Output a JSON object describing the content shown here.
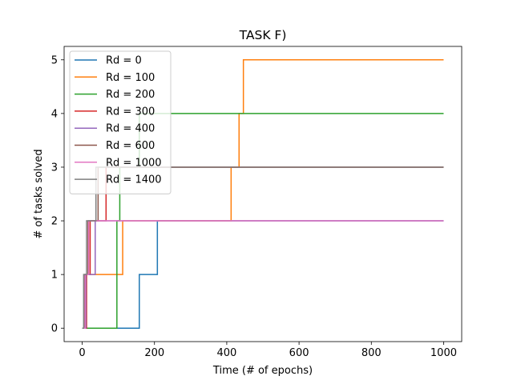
{
  "chart_data": {
    "type": "line",
    "title": "TASK F)",
    "xlabel": "Time (# of epochs)",
    "ylabel": "# of tasks solved",
    "xlim": [
      -50,
      1050
    ],
    "ylim": [
      -0.25,
      5.25
    ],
    "xticks": [
      0,
      200,
      400,
      600,
      800,
      1000
    ],
    "yticks": [
      0,
      1,
      2,
      3,
      4,
      5
    ],
    "grid": false,
    "legend": "top-left",
    "line_style": "step",
    "series": [
      {
        "name": "Rd = 0",
        "color": "#1f77b4",
        "points": [
          [
            0,
            0
          ],
          [
            158,
            0
          ],
          [
            158,
            1
          ],
          [
            208,
            1
          ],
          [
            208,
            2
          ],
          [
            1000,
            2
          ]
        ]
      },
      {
        "name": "Rd = 100",
        "color": "#ff7f0e",
        "points": [
          [
            0,
            0
          ],
          [
            10,
            0
          ],
          [
            10,
            1
          ],
          [
            112,
            1
          ],
          [
            112,
            2
          ],
          [
            412,
            2
          ],
          [
            412,
            3
          ],
          [
            434,
            3
          ],
          [
            434,
            4
          ],
          [
            446,
            4
          ],
          [
            446,
            5
          ],
          [
            1000,
            5
          ]
        ]
      },
      {
        "name": "Rd = 200",
        "color": "#2ca02c",
        "points": [
          [
            0,
            0
          ],
          [
            96,
            0
          ],
          [
            96,
            2
          ],
          [
            104,
            2
          ],
          [
            104,
            3
          ],
          [
            158,
            3
          ],
          [
            158,
            4
          ],
          [
            1000,
            4
          ]
        ]
      },
      {
        "name": "Rd = 300",
        "color": "#d62728",
        "points": [
          [
            0,
            0
          ],
          [
            12,
            0
          ],
          [
            12,
            1
          ],
          [
            22,
            1
          ],
          [
            22,
            2
          ],
          [
            66,
            2
          ],
          [
            66,
            3
          ],
          [
            1000,
            3
          ]
        ]
      },
      {
        "name": "Rd = 400",
        "color": "#9467bd",
        "points": [
          [
            0,
            0
          ],
          [
            10,
            0
          ],
          [
            10,
            1
          ],
          [
            36,
            1
          ],
          [
            36,
            2
          ],
          [
            1000,
            2
          ]
        ]
      },
      {
        "name": "Rd = 600",
        "color": "#8c564b",
        "points": [
          [
            0,
            0
          ],
          [
            6,
            0
          ],
          [
            6,
            1
          ],
          [
            16,
            1
          ],
          [
            16,
            2
          ],
          [
            44,
            2
          ],
          [
            44,
            3
          ],
          [
            1000,
            3
          ]
        ]
      },
      {
        "name": "Rd = 1000",
        "color": "#e377c2",
        "points": [
          [
            0,
            0
          ],
          [
            8,
            0
          ],
          [
            8,
            1
          ],
          [
            18,
            1
          ],
          [
            18,
            2
          ],
          [
            1000,
            2
          ]
        ]
      },
      {
        "name": "Rd = 1400",
        "color": "#7f7f7f",
        "points": [
          [
            0,
            0
          ],
          [
            4,
            0
          ],
          [
            4,
            1
          ],
          [
            12,
            1
          ],
          [
            12,
            2
          ],
          [
            38,
            2
          ],
          [
            38,
            3
          ],
          [
            1000,
            3
          ]
        ]
      }
    ]
  }
}
